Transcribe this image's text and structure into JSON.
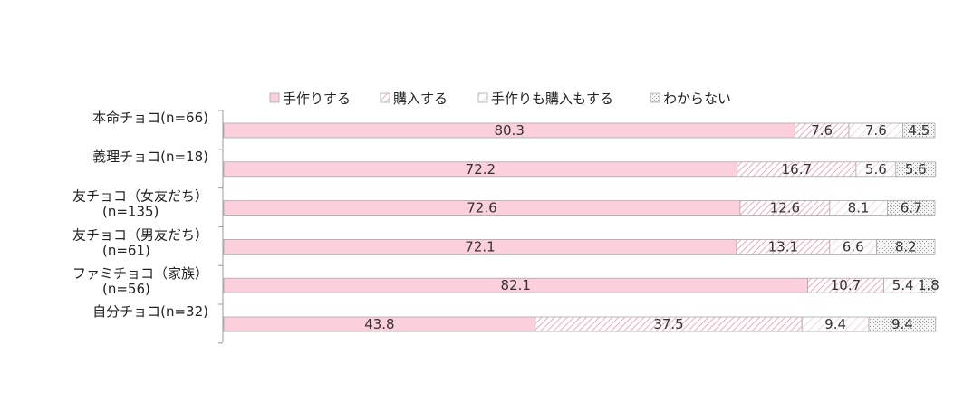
{
  "chart_data": {
    "type": "bar",
    "orientation": "horizontal-stacked-percent",
    "legend_position": "top",
    "categories": [
      [
        "本命チョコ(n=66)"
      ],
      [
        "義理チョコ(n=18)"
      ],
      [
        "友チョコ（女友だち）",
        "(n=135)"
      ],
      [
        "友チョコ（男友だち）",
        "(n=61)"
      ],
      [
        "ファミチョコ（家族）",
        "(n=56)"
      ],
      [
        "自分チョコ(n=32)"
      ]
    ],
    "series": [
      {
        "name": "手作りする",
        "values": [
          80.3,
          72.2,
          72.6,
          72.1,
          82.1,
          43.8
        ],
        "color": "#fccfdc",
        "pattern": "solid"
      },
      {
        "name": "購入する",
        "values": [
          7.6,
          16.7,
          12.6,
          13.1,
          10.7,
          37.5
        ],
        "color": "#f3b6c6",
        "pattern": "hatch"
      },
      {
        "name": "手作りも購入もする",
        "values": [
          7.6,
          5.6,
          8.1,
          6.6,
          5.4,
          9.4
        ],
        "color": "#f3b6c6",
        "pattern": "hatch-light"
      },
      {
        "name": "わからない",
        "values": [
          4.5,
          5.6,
          6.7,
          8.2,
          1.8,
          9.4
        ],
        "color": "#bdbdbd",
        "pattern": "dots"
      }
    ],
    "xlim": [
      0,
      100
    ],
    "grid": false
  }
}
